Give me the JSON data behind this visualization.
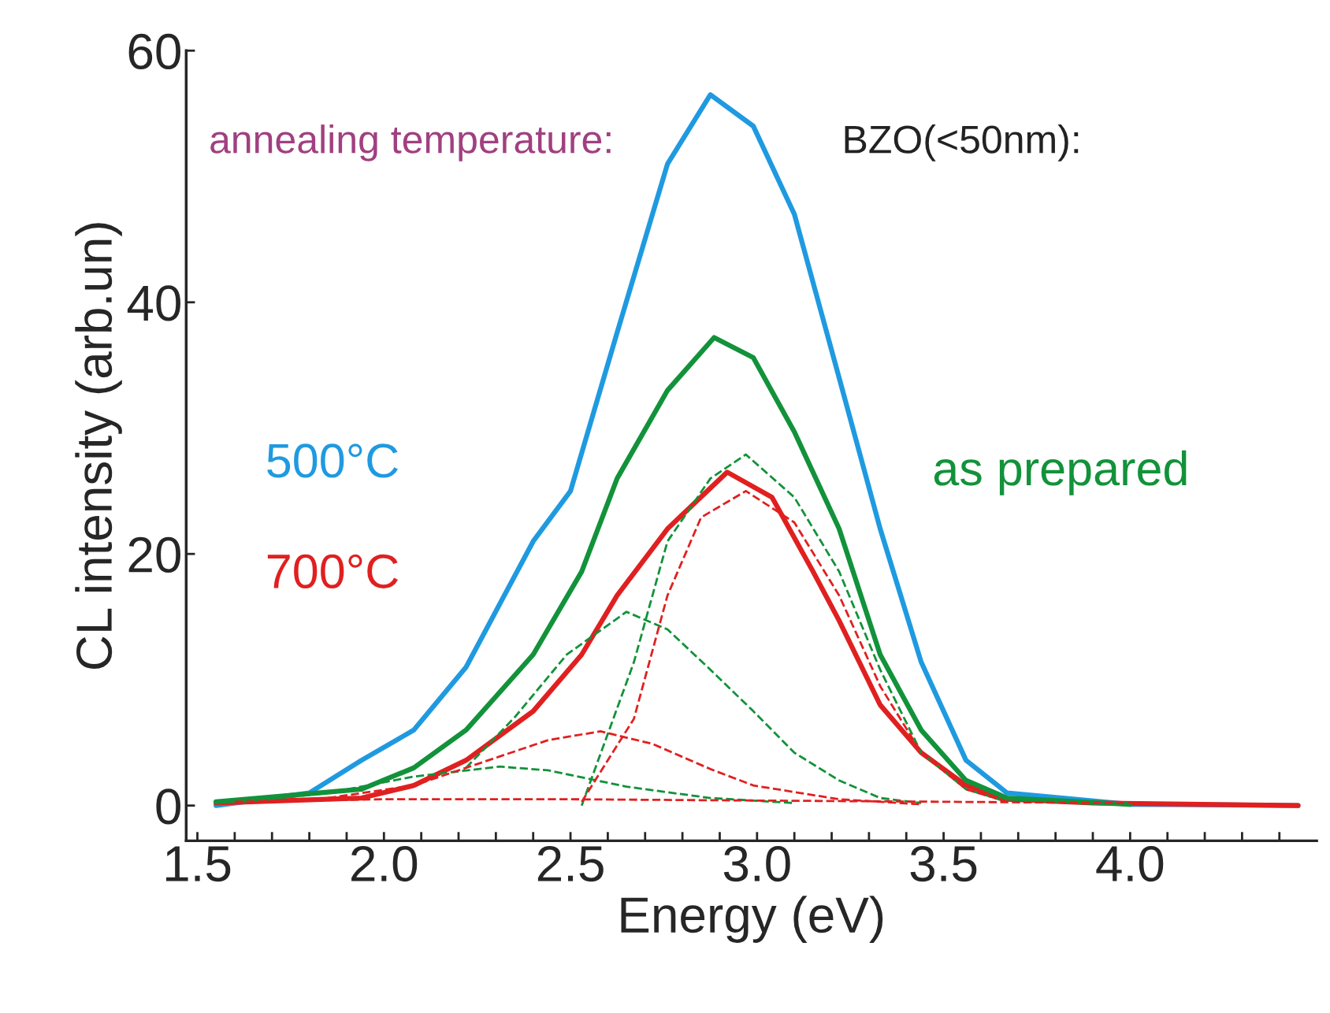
{
  "chart_data": {
    "type": "line",
    "xlabel": "Energy (eV)",
    "ylabel": "CL intensity (arb.un)",
    "annotations": [
      "annealing temperature:",
      "BZO(<50nm):"
    ],
    "xlim": [
      1.47,
      4.5
    ],
    "ylim": [
      -2.8,
      60
    ],
    "xticks": [
      {
        "value": 1.5,
        "label": "1.5"
      },
      {
        "value": 1.6,
        "label": null
      },
      {
        "value": 1.7,
        "label": null
      },
      {
        "value": 1.8,
        "label": null
      },
      {
        "value": 1.9,
        "label": null
      },
      {
        "value": 2.0,
        "label": "2.0"
      },
      {
        "value": 2.1,
        "label": null
      },
      {
        "value": 2.2,
        "label": null
      },
      {
        "value": 2.3,
        "label": null
      },
      {
        "value": 2.4,
        "label": null
      },
      {
        "value": 2.5,
        "label": "2.5"
      },
      {
        "value": 2.6,
        "label": null
      },
      {
        "value": 2.7,
        "label": null
      },
      {
        "value": 2.8,
        "label": null
      },
      {
        "value": 2.9,
        "label": null
      },
      {
        "value": 3.0,
        "label": "3.0"
      },
      {
        "value": 3.1,
        "label": null
      },
      {
        "value": 3.2,
        "label": null
      },
      {
        "value": 3.3,
        "label": null
      },
      {
        "value": 3.4,
        "label": null
      },
      {
        "value": 3.5,
        "label": "3.5"
      },
      {
        "value": 3.6,
        "label": null
      },
      {
        "value": 3.7,
        "label": null
      },
      {
        "value": 3.8,
        "label": null
      },
      {
        "value": 3.9,
        "label": null
      },
      {
        "value": 4.0,
        "label": "4.0"
      },
      {
        "value": 4.1,
        "label": null
      },
      {
        "value": 4.2,
        "label": null
      },
      {
        "value": 4.3,
        "label": null
      },
      {
        "value": 4.4,
        "label": null
      }
    ],
    "yticks": [
      0,
      20,
      40,
      60
    ],
    "grid": false,
    "line_style": "solid",
    "series": [
      {
        "name": "500°C",
        "color": "#1f9ae0",
        "x": [
          1.55,
          1.8,
          1.94,
          2.08,
          2.22,
          2.4,
          2.5,
          2.625,
          2.76,
          2.875,
          2.99,
          3.1,
          3.22,
          3.33,
          3.44,
          3.56,
          3.67,
          4.0,
          4.45
        ],
        "values": [
          0,
          1,
          3.6,
          6,
          11,
          21,
          25,
          37.6,
          51,
          56.5,
          54,
          47,
          34,
          22,
          11.4,
          3.6,
          1,
          0.1,
          0
        ]
      },
      {
        "name": "700°C",
        "color": "#e02020",
        "x": [
          1.55,
          1.94,
          2.08,
          2.22,
          2.4,
          2.53,
          2.625,
          2.76,
          2.92,
          3.04,
          3.15,
          3.22,
          3.33,
          3.44,
          3.56,
          3.67,
          3.9,
          4.45
        ],
        "values": [
          0.2,
          0.6,
          1.6,
          3.6,
          7.5,
          12,
          16.7,
          22,
          26.5,
          24.5,
          18.6,
          14.7,
          8,
          4.2,
          1.6,
          0.5,
          0.2,
          0
        ]
      },
      {
        "name": "as prepared",
        "color": "#12923a",
        "x": [
          1.55,
          1.94,
          2.08,
          2.22,
          2.4,
          2.53,
          2.625,
          2.76,
          2.885,
          2.99,
          3.1,
          3.22,
          3.33,
          3.44,
          3.56,
          3.67,
          4.0
        ],
        "values": [
          0.3,
          1.3,
          3,
          6,
          12,
          18.6,
          26,
          33,
          37.2,
          35.6,
          29.7,
          22,
          12,
          6,
          2,
          0.6,
          0.1
        ]
      },
      {
        "color": "#12923a",
        "line_style": "dashed",
        "x": [
          2.53,
          2.67,
          2.76,
          2.875,
          2.97,
          3.1,
          3.22,
          3.33,
          3.44,
          3.56,
          3.67
        ],
        "values": [
          0,
          11.4,
          21,
          26,
          27.9,
          24.5,
          18.6,
          10.8,
          4.2,
          1.3,
          0.3
        ]
      },
      {
        "color": "#12923a",
        "line_style": "dashed",
        "x": [
          2.22,
          2.35,
          2.49,
          2.65,
          2.76,
          2.875,
          2.99,
          3.1,
          3.22,
          3.33,
          3.44
        ],
        "values": [
          3,
          7,
          12,
          15.4,
          14,
          10.8,
          7.5,
          4.2,
          2,
          0.6,
          0.2
        ]
      },
      {
        "color": "#12923a",
        "line_style": "dashed",
        "x": [
          1.625,
          1.85,
          2.08,
          2.31,
          2.44,
          2.65,
          2.875,
          3.1
        ],
        "values": [
          0.3,
          1,
          2.3,
          3.1,
          2.8,
          1.5,
          0.6,
          0.2
        ]
      },
      {
        "color": "#e02020",
        "line_style": "dashed",
        "x": [
          2.53,
          2.67,
          2.76,
          2.85,
          2.97,
          3.1,
          3.22,
          3.33,
          3.44,
          3.56,
          3.67
        ],
        "values": [
          0.3,
          6.9,
          16.7,
          22.9,
          25,
          22.5,
          16.7,
          9.5,
          4.2,
          1.3,
          0.3
        ]
      },
      {
        "color": "#e02020",
        "line_style": "dashed",
        "x": [
          1.85,
          2.08,
          2.31,
          2.44,
          2.58,
          2.72,
          2.875,
          2.99,
          3.22,
          3.44
        ],
        "values": [
          0.6,
          1.6,
          3.9,
          5.2,
          5.9,
          4.9,
          2.9,
          1.6,
          0.5,
          0.1
        ]
      },
      {
        "color": "#e02020",
        "line_style": "dashed",
        "x": [
          1.6,
          2.0,
          2.5,
          3.0,
          3.5,
          4.0,
          4.4
        ],
        "values": [
          0.3,
          0.5,
          0.5,
          0.4,
          0.3,
          0.2,
          0.1
        ]
      }
    ]
  }
}
